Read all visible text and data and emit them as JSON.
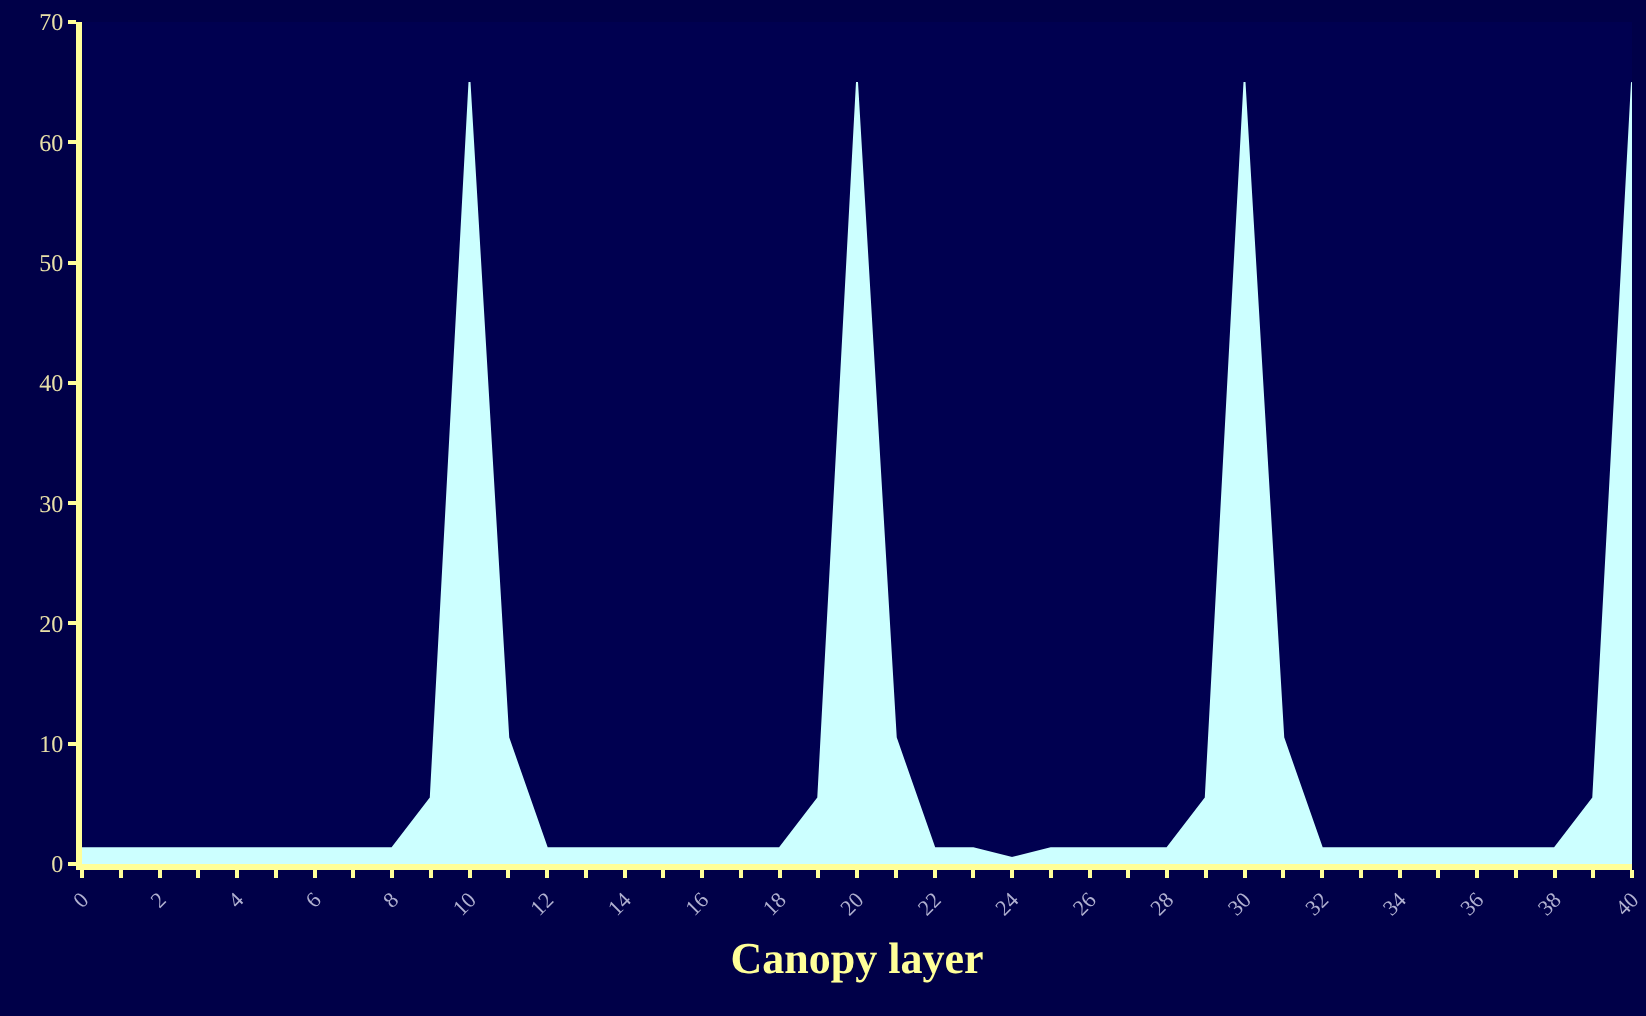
{
  "chart_data": {
    "type": "area",
    "xlabel": "Canopy layer",
    "x": [
      0,
      1,
      2,
      3,
      4,
      5,
      6,
      7,
      8,
      9,
      10,
      11,
      12,
      13,
      14,
      15,
      16,
      17,
      18,
      19,
      20,
      21,
      22,
      23,
      24,
      25,
      26,
      27,
      28,
      29,
      30,
      31,
      32,
      33,
      34,
      35,
      36,
      37,
      38,
      39,
      40
    ],
    "series": [
      {
        "color": "#ccffff",
        "values": [
          1.3,
          1.3,
          1.3,
          1.3,
          1.3,
          1.3,
          1.3,
          1.3,
          1.3,
          5.5,
          65,
          10.5,
          1.3,
          1.3,
          1.3,
          1.3,
          1.3,
          1.3,
          1.3,
          5.5,
          65,
          10.5,
          1.3,
          1.3,
          0.5,
          1.3,
          1.3,
          1.3,
          1.3,
          5.5,
          65,
          10.5,
          1.3,
          1.3,
          1.3,
          1.3,
          1.3,
          1.3,
          1.3,
          5.5,
          65
        ]
      }
    ],
    "xlim": [
      0,
      40
    ],
    "xticks": [
      0,
      {
        "value": 1,
        "label": null
      },
      2,
      {
        "value": 3,
        "label": null
      },
      4,
      {
        "value": 5,
        "label": null
      },
      6,
      {
        "value": 7,
        "label": null
      },
      8,
      {
        "value": 9,
        "label": null
      },
      10,
      {
        "value": 11,
        "label": null
      },
      12,
      {
        "value": 13,
        "label": null
      },
      14,
      {
        "value": 15,
        "label": null
      },
      16,
      {
        "value": 17,
        "label": null
      },
      18,
      {
        "value": 19,
        "label": null
      },
      20,
      {
        "value": 21,
        "label": null
      },
      22,
      {
        "value": 23,
        "label": null
      },
      24,
      {
        "value": 25,
        "label": null
      },
      26,
      {
        "value": 27,
        "label": null
      },
      28,
      {
        "value": 29,
        "label": null
      },
      30,
      {
        "value": 31,
        "label": null
      },
      32,
      {
        "value": 33,
        "label": null
      },
      34,
      {
        "value": 35,
        "label": null
      },
      36,
      {
        "value": 37,
        "label": null
      },
      38,
      {
        "value": 39,
        "label": null
      },
      40
    ],
    "ylim": [
      0,
      70
    ],
    "yticks": [
      0,
      10,
      20,
      30,
      40,
      50,
      60,
      70
    ],
    "grid": false
  }
}
